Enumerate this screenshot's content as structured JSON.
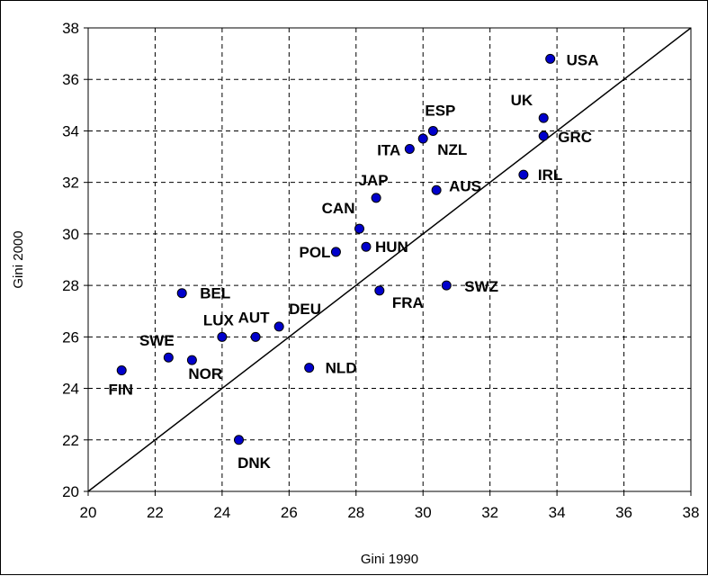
{
  "chart_data": {
    "type": "scatter",
    "xlabel": "Gini 1990",
    "ylabel": "Gini 2000",
    "xlim": [
      20,
      38
    ],
    "ylim": [
      20,
      38
    ],
    "x_ticks": [
      "20",
      "22",
      "24",
      "26",
      "28",
      "30",
      "32",
      "34",
      "36",
      "38"
    ],
    "y_ticks": [
      "20",
      "22",
      "24",
      "26",
      "28",
      "30",
      "32",
      "34",
      "36",
      "38"
    ],
    "grid": true,
    "reference_line": {
      "type": "diagonal",
      "from": [
        20,
        20
      ],
      "to": [
        38,
        38
      ]
    },
    "marker_color": "#0000CC",
    "points": [
      {
        "label": "USA",
        "x": 33.8,
        "y": 36.8
      },
      {
        "label": "UK",
        "x": 33.6,
        "y": 34.5
      },
      {
        "label": "GRC",
        "x": 33.6,
        "y": 33.8
      },
      {
        "label": "ESP",
        "x": 30.3,
        "y": 34.0
      },
      {
        "label": "NZL",
        "x": 30.0,
        "y": 33.7
      },
      {
        "label": "ITA",
        "x": 29.6,
        "y": 33.3
      },
      {
        "label": "IRL",
        "x": 33.0,
        "y": 32.3
      },
      {
        "label": "JAP",
        "x": 28.6,
        "y": 31.4
      },
      {
        "label": "AUS",
        "x": 30.4,
        "y": 31.7
      },
      {
        "label": "CAN",
        "x": 28.1,
        "y": 30.2
      },
      {
        "label": "HUN",
        "x": 28.3,
        "y": 29.5
      },
      {
        "label": "POL",
        "x": 27.4,
        "y": 29.3
      },
      {
        "label": "SWZ",
        "x": 30.7,
        "y": 28.0
      },
      {
        "label": "FRA",
        "x": 28.7,
        "y": 27.8
      },
      {
        "label": "BEL",
        "x": 22.8,
        "y": 27.7
      },
      {
        "label": "DEU",
        "x": 25.7,
        "y": 26.4
      },
      {
        "label": "AUT",
        "x": 25.0,
        "y": 26.0
      },
      {
        "label": "LUX",
        "x": 24.0,
        "y": 26.0
      },
      {
        "label": "SWE",
        "x": 22.4,
        "y": 25.2
      },
      {
        "label": "NOR",
        "x": 23.1,
        "y": 25.1
      },
      {
        "label": "NLD",
        "x": 26.6,
        "y": 24.8
      },
      {
        "label": "FIN",
        "x": 21.0,
        "y": 24.7
      },
      {
        "label": "DNK",
        "x": 24.5,
        "y": 22.0
      }
    ]
  }
}
